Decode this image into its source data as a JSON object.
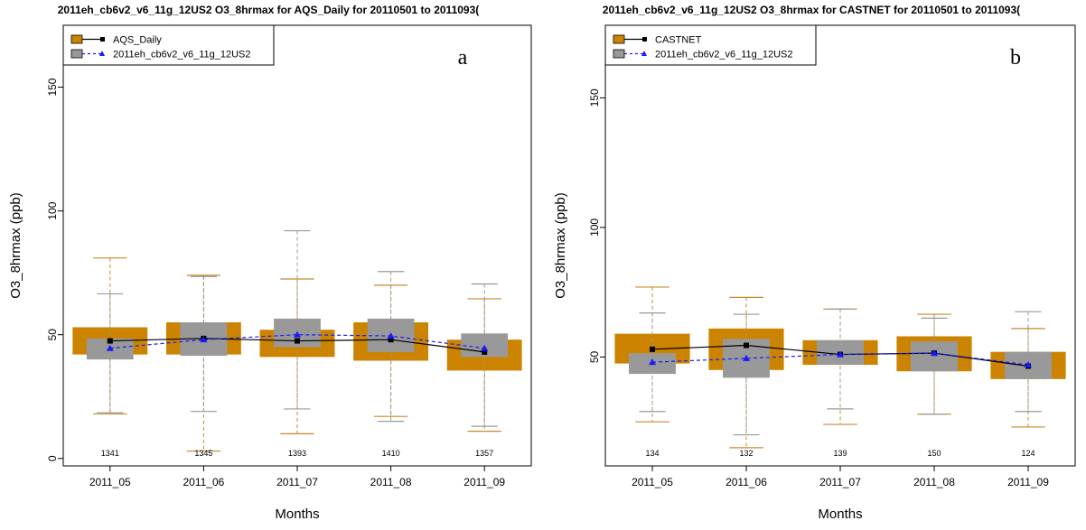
{
  "colors": {
    "obs": "#cc8400",
    "obs_whisker": "#c88a2a",
    "model": "#999999",
    "model_whisker": "#999999",
    "model_line": "#1a1aff"
  },
  "chart_data": [
    {
      "type": "box",
      "title": "2011eh_cb6v2_v6_11g_12US2 O3_8hrmax for AQS_Daily for 20110501 to 2011093(",
      "panel": "a",
      "xlabel": "Months",
      "ylabel": "O3_8hrmax (ppb)",
      "ylim": [
        -3,
        175
      ],
      "yticks": [
        0,
        50,
        100,
        150
      ],
      "categories": [
        "2011_05",
        "2011_06",
        "2011_07",
        "2011_08",
        "2011_09"
      ],
      "counts": [
        "1341",
        "1345",
        "1393",
        "1410",
        "1357"
      ],
      "legend": [
        "AQS_Daily",
        "2011eh_cb6v2_v6_11g_12US2"
      ],
      "obs": {
        "name": "AQS_Daily",
        "whisker_low": [
          18,
          3,
          10,
          17,
          11
        ],
        "q1": [
          42,
          42,
          41,
          39.5,
          35.5
        ],
        "median": [
          47.5,
          48.5,
          47.5,
          48,
          43
        ],
        "q3": [
          53,
          55,
          52,
          55,
          48
        ],
        "whisker_high": [
          81,
          74,
          72.5,
          70,
          64.5
        ]
      },
      "model": {
        "name": "2011eh_cb6v2_v6_11g_12US2",
        "whisker_low": [
          18.5,
          19,
          20,
          15,
          13
        ],
        "q1": [
          40,
          41.5,
          45,
          43,
          41
        ],
        "median": [
          44.5,
          48,
          50,
          49.5,
          44.5
        ],
        "q3": [
          48.5,
          55,
          56.5,
          56.5,
          50.5
        ],
        "whisker_high": [
          66.5,
          73.5,
          92,
          75.5,
          70.5
        ]
      }
    },
    {
      "type": "box",
      "title": "2011eh_cb6v2_v6_11g_12US2 O3_8hrmax for CASTNET for 20110501 to 2011093(",
      "panel": "b",
      "xlabel": "Months",
      "ylabel": "O3_8hrmax (ppb)",
      "ylim": [
        8,
        178
      ],
      "yticks": [
        50,
        100,
        150
      ],
      "categories": [
        "2011_05",
        "2011_06",
        "2011_07",
        "2011_08",
        "2011_09"
      ],
      "counts": [
        "134",
        "132",
        "139",
        "150",
        "124"
      ],
      "legend": [
        "CASTNET",
        "2011eh_cb6v2_v6_11g_12US2"
      ],
      "obs": {
        "name": "CASTNET",
        "whisker_low": [
          25,
          15,
          24,
          28,
          23
        ],
        "q1": [
          47.5,
          45,
          47,
          44.5,
          41.5
        ],
        "median": [
          53,
          54.5,
          51,
          51.5,
          46.5
        ],
        "q3": [
          59,
          61,
          56.5,
          58,
          52
        ],
        "whisker_high": [
          77,
          73,
          68.5,
          66.5,
          61
        ]
      },
      "model": {
        "name": "2011eh_cb6v2_v6_11g_12US2",
        "whisker_low": [
          29,
          20,
          30,
          28,
          29
        ],
        "q1": [
          43.5,
          42,
          47,
          44.5,
          41.5
        ],
        "median": [
          48,
          49.5,
          51,
          51.5,
          47
        ],
        "q3": [
          51.5,
          57,
          56.5,
          56,
          52
        ],
        "whisker_high": [
          67,
          66.5,
          68.5,
          65,
          67.5
        ]
      }
    }
  ]
}
